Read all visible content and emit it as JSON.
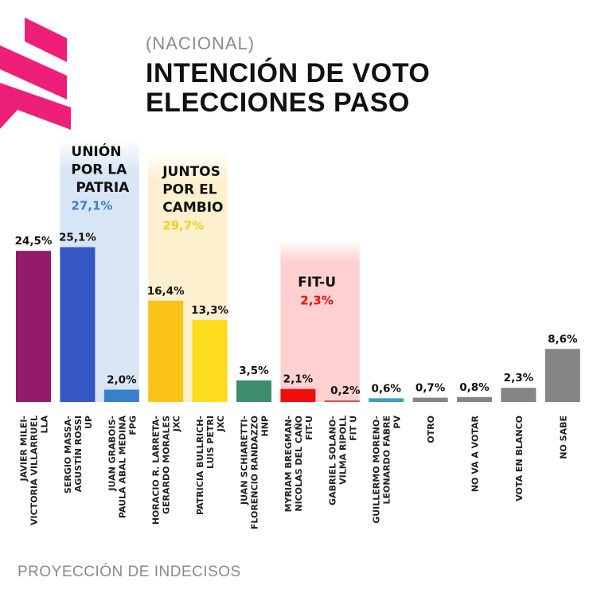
{
  "header": {
    "subtitle": "(NACIONAL)",
    "title_line1": "INTENCIÓN DE VOTO",
    "title_line2": "ELECCIONES PASO",
    "logo_icon": "stripes-logo-icon"
  },
  "footer": {
    "note": "PROYECCIÓN DE INDECISOS"
  },
  "colors": {
    "logo": "#ee1f78",
    "up_panel": "#d8e5f5",
    "jxc_panel": "#fdf0cf",
    "fitu_panel": "#ffd0d0",
    "up_total": "#3b7fd0",
    "jxc_total": "#f2cf1a",
    "fitu_total": "#e01010"
  },
  "chart_data": {
    "type": "bar",
    "title": "INTENCIÓN DE VOTO ELECCIONES PASO",
    "subtitle": "(NACIONAL)",
    "xlabel": "",
    "ylabel": "",
    "ylim": [
      0,
      30
    ],
    "grid": false,
    "value_suffix": "%",
    "decimal_separator": ",",
    "categories": [
      [
        "JAVIER MILEI-",
        "VICTORIA VILLARRUEL",
        "LLA"
      ],
      [
        "SERGIO MASSA-",
        "AGUSTÍN ROSSI",
        "UP"
      ],
      [
        "JUAN GRABOIS-",
        "PAULA ABAL MEDINA",
        "FPG"
      ],
      [
        "HORACIO R. LARRETA-",
        "GERARDO MORALES",
        "JXC"
      ],
      [
        "PATRICIA BULLRICH-",
        "LUIS PETRI",
        "JXC"
      ],
      [
        "JUAN SCHIARETTI-",
        "FLORENCIO RANDAZZO",
        "HNP"
      ],
      [
        "MYRIAM BREGMAN-",
        "NICOLAS DEL CAÑO",
        "FIT-U"
      ],
      [
        "GABRIEL SOLANO-",
        "VILMA RIPOLL",
        "FIT U"
      ],
      [
        "GUILLERMO MORENO-",
        "LEONARDO FABRE",
        "PV"
      ],
      [
        "OTRO"
      ],
      [
        "NO VA A VOTAR"
      ],
      [
        "VOTA EN BLANCO"
      ],
      [
        "NO SABE"
      ]
    ],
    "values": [
      24.5,
      25.1,
      2.0,
      16.4,
      13.3,
      3.5,
      2.1,
      0.2,
      0.6,
      0.7,
      0.8,
      2.3,
      8.6
    ],
    "value_labels": [
      "24,5%",
      "25,1%",
      "2,0%",
      "16,4%",
      "13,3%",
      "3,5%",
      "2,1%",
      "0,2%",
      "0,6%",
      "0,7%",
      "0,8%",
      "2,3%",
      "8,6%"
    ],
    "bar_colors": [
      "#941a6b",
      "#3558c4",
      "#3a7fcc",
      "#fbc21a",
      "#fddc1e",
      "#3d8c6e",
      "#f20d0d",
      "#d9534f",
      "#3aa0b8",
      "#858585",
      "#858585",
      "#858585",
      "#858585"
    ],
    "groups": [
      {
        "name": [
          "UNIÓN",
          "POR LA",
          "PATRIA"
        ],
        "total": 27.1,
        "total_label": "27,1%",
        "members": [
          1,
          2
        ],
        "panel_color": "#d8e5f5",
        "total_color": "#3b7fd0"
      },
      {
        "name": [
          "JUNTOS",
          "POR EL",
          "CAMBIO"
        ],
        "total": 29.7,
        "total_label": "29,7%",
        "members": [
          3,
          4
        ],
        "panel_color": "#fdf0cf",
        "total_color": "#f2cf1a"
      },
      {
        "name": [
          "FIT-U"
        ],
        "total": 2.3,
        "total_label": "2,3%",
        "members": [
          6,
          7
        ],
        "panel_color": "#ffd0d0",
        "total_color": "#e01010"
      }
    ]
  }
}
